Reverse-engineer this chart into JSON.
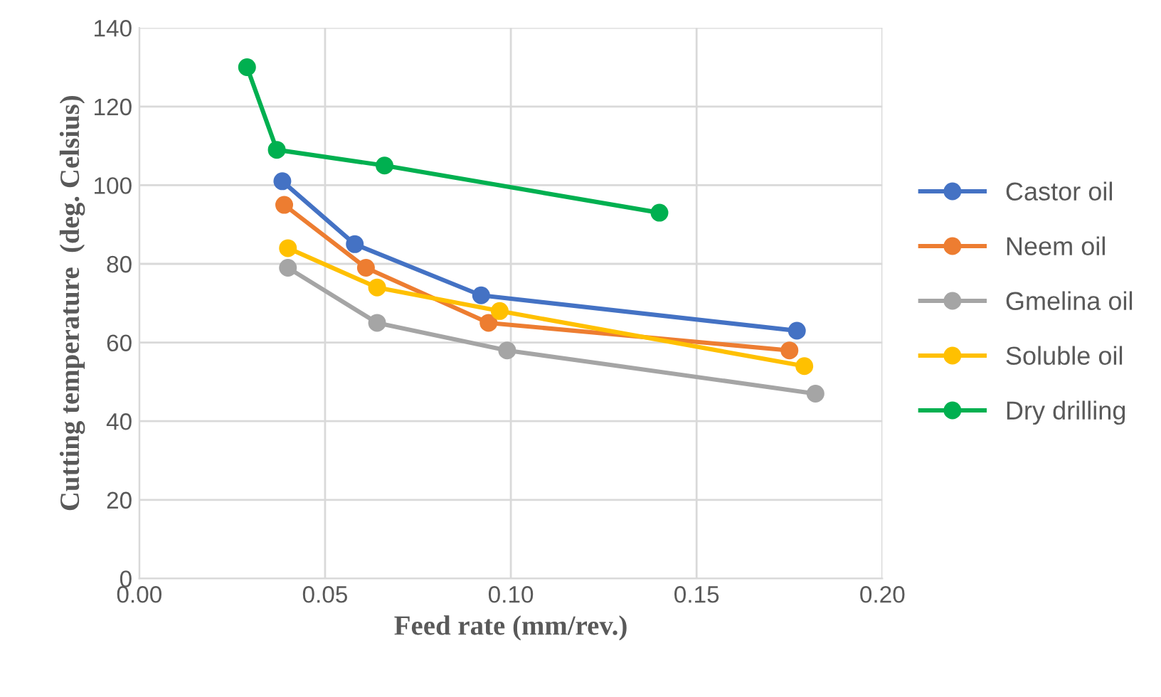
{
  "chart_data": {
    "type": "line",
    "xlabel": "Feed rate (mm/rev.)",
    "ylabel": "Cutting temperature  (deg. Celsius)",
    "xlim": [
      0,
      0.2
    ],
    "xticks": [
      {
        "value": 0,
        "label": "0.00"
      },
      {
        "value": 0.05,
        "label": "0.05"
      },
      {
        "value": 0.1,
        "label": "0.10"
      },
      {
        "value": 0.15,
        "label": "0.15"
      },
      {
        "value": 0.2,
        "label": "0.20"
      }
    ],
    "ylim": [
      0,
      140
    ],
    "yticks": [
      0,
      20,
      40,
      60,
      80,
      100,
      120,
      140
    ],
    "grid": true,
    "legend": "right",
    "marker": "circle",
    "line_style": "solid",
    "series": [
      {
        "name": "Castor oil",
        "color": "#4472c4",
        "x": [
          0.0385,
          0.058,
          0.092,
          0.177
        ],
        "values": [
          101,
          85,
          72,
          63
        ]
      },
      {
        "name": "Neem oil",
        "color": "#ed7d31",
        "x": [
          0.039,
          0.061,
          0.094,
          0.175
        ],
        "values": [
          95,
          79,
          65,
          58
        ]
      },
      {
        "name": "Gmelina oil",
        "color": "#a5a5a5",
        "x": [
          0.04,
          0.064,
          0.099,
          0.182
        ],
        "values": [
          79,
          65,
          58,
          47
        ]
      },
      {
        "name": "Soluble oil",
        "color": "#ffc000",
        "x": [
          0.04,
          0.064,
          0.097,
          0.179
        ],
        "values": [
          84,
          74,
          68,
          54
        ]
      },
      {
        "name": "Dry drilling",
        "color": "#00b050",
        "x": [
          0.029,
          0.037,
          0.066,
          0.14
        ],
        "values": [
          130,
          109,
          105,
          93
        ]
      }
    ]
  }
}
